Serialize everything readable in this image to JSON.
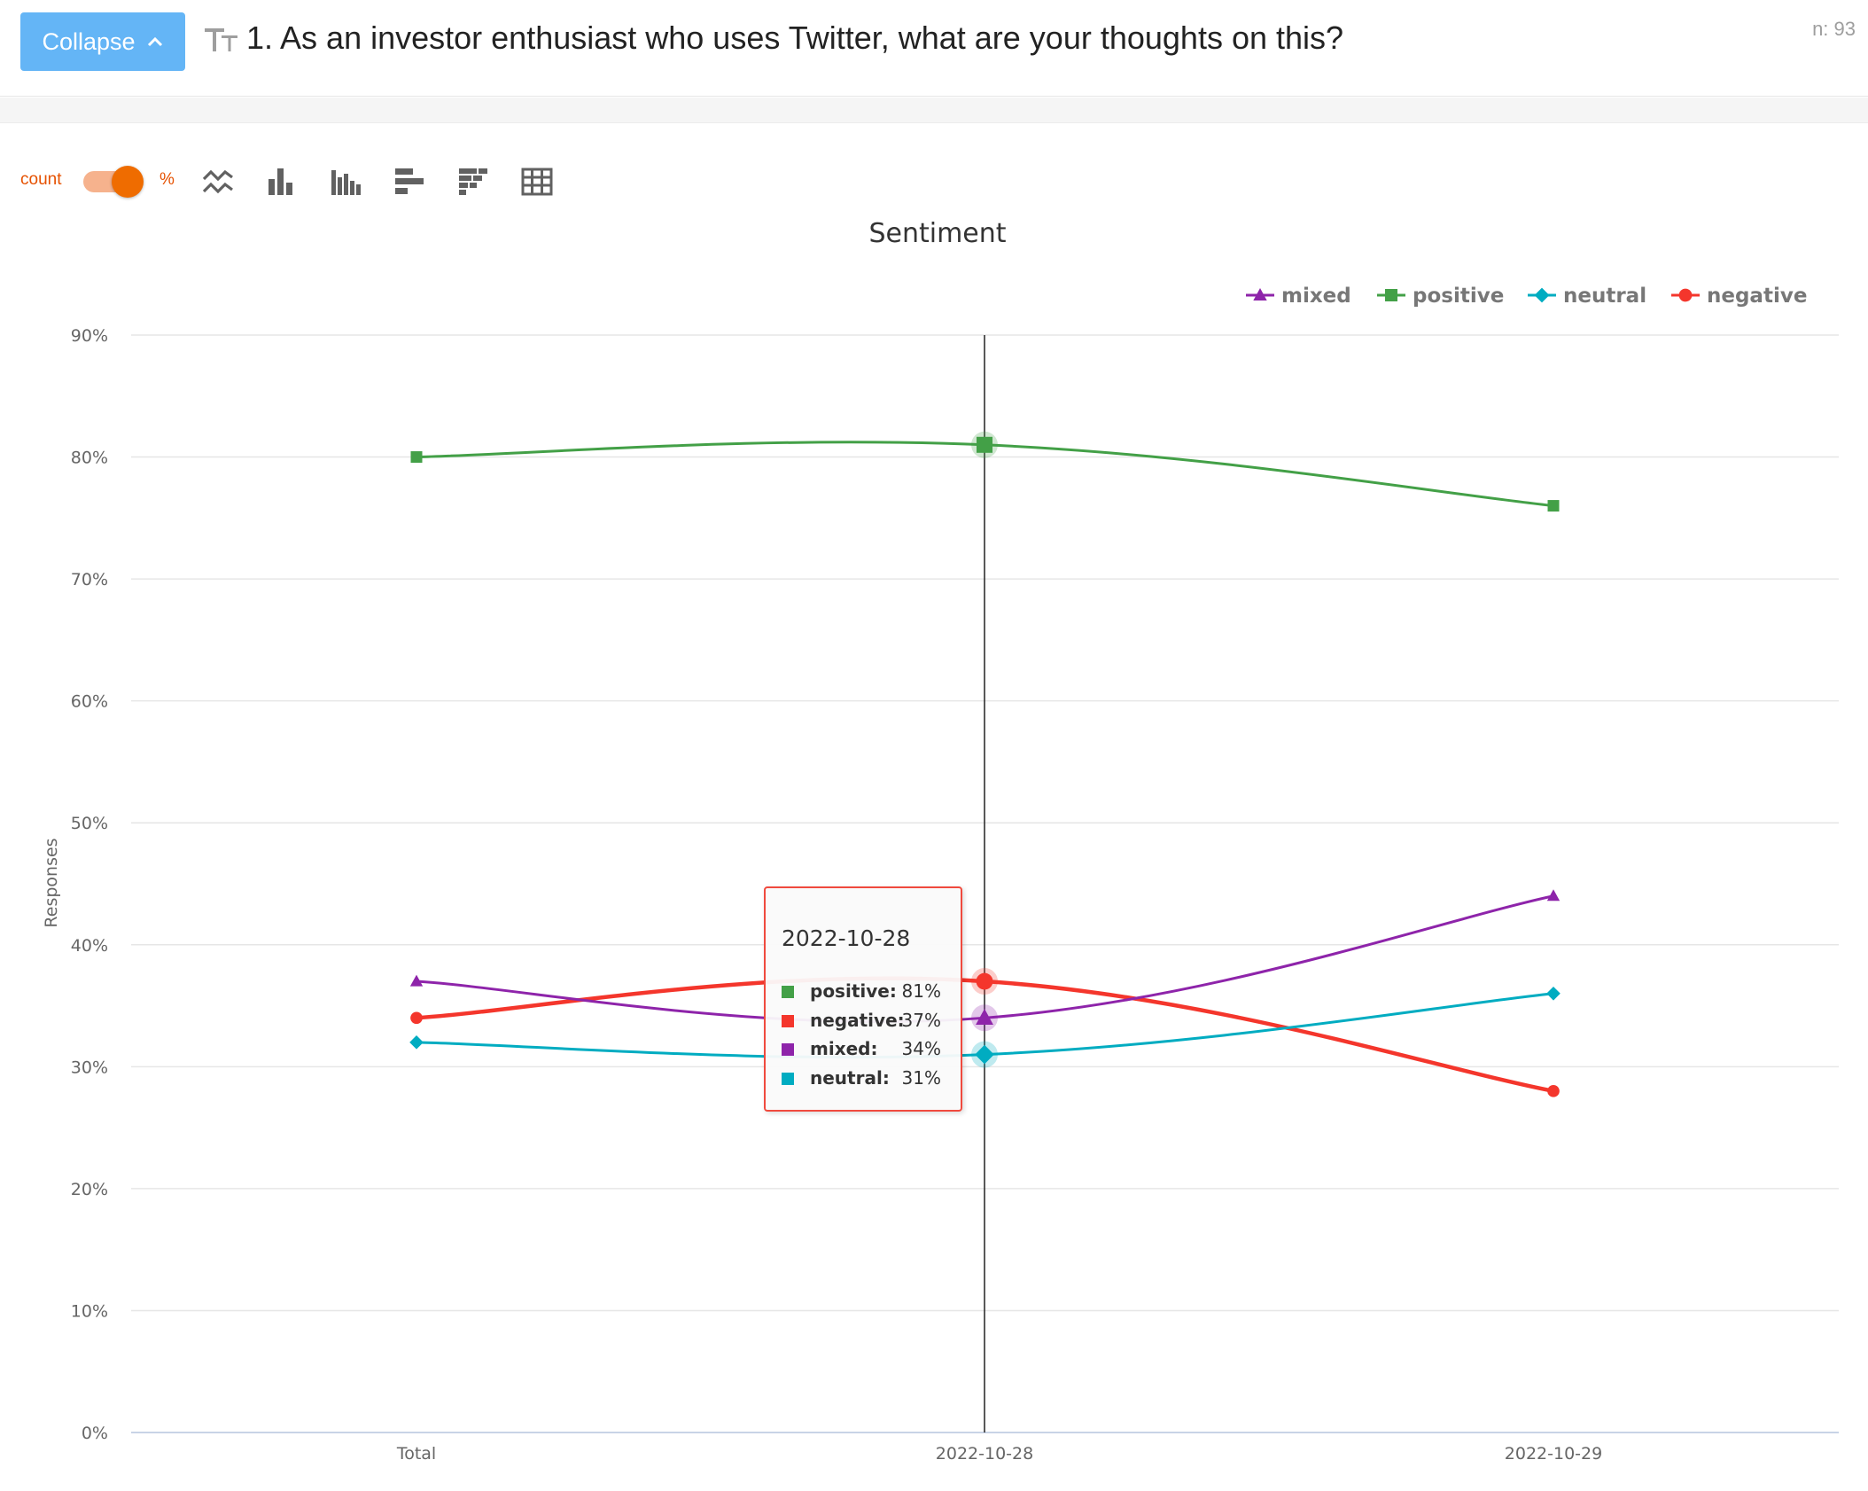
{
  "header": {
    "collapse_label": "Collapse",
    "question": "1. As an investor enthusiast who uses Twitter, what are your thoughts on this?",
    "n_label": "n: 93"
  },
  "toolbar": {
    "count_label": "count",
    "percent_label": "%",
    "toggle_state": "percent",
    "icons": [
      "line-chart-icon",
      "bar-chart-icon",
      "grouped-bar-chart-icon",
      "horizontal-bar-chart-icon",
      "stacked-horizontal-bar-chart-icon",
      "table-icon"
    ]
  },
  "colors": {
    "mixed": "#8e24aa",
    "positive": "#43a047",
    "neutral": "#00acc1",
    "negative": "#f4362c",
    "accent": "#ef6c00",
    "button": "#64b5f6"
  },
  "chart_data": {
    "type": "line",
    "title": "Sentiment",
    "ylabel": "Responses",
    "xlabel": "",
    "categories": [
      "Total",
      "2022-10-28",
      "2022-10-29"
    ],
    "y_ticks": [
      "0%",
      "10%",
      "20%",
      "30%",
      "40%",
      "50%",
      "60%",
      "70%",
      "80%",
      "90%"
    ],
    "ylim": [
      0,
      90
    ],
    "grid": true,
    "legend_position": "top-right",
    "legend_order": [
      "mixed",
      "positive",
      "neutral",
      "negative"
    ],
    "series": [
      {
        "name": "positive",
        "values": [
          80,
          81,
          76
        ],
        "marker": "square"
      },
      {
        "name": "negative",
        "values": [
          34,
          37,
          28
        ],
        "marker": "circle"
      },
      {
        "name": "mixed",
        "values": [
          37,
          34,
          44
        ],
        "marker": "triangle"
      },
      {
        "name": "neutral",
        "values": [
          32,
          31,
          36
        ],
        "marker": "diamond"
      }
    ],
    "highlight_category": "2022-10-28"
  },
  "tooltip": {
    "title": "2022-10-28",
    "rows": [
      {
        "name": "positive:",
        "value": "81%"
      },
      {
        "name": "negative:",
        "value": "37%"
      },
      {
        "name": "mixed:",
        "value": "34%"
      },
      {
        "name": "neutral:",
        "value": "31%"
      }
    ]
  }
}
